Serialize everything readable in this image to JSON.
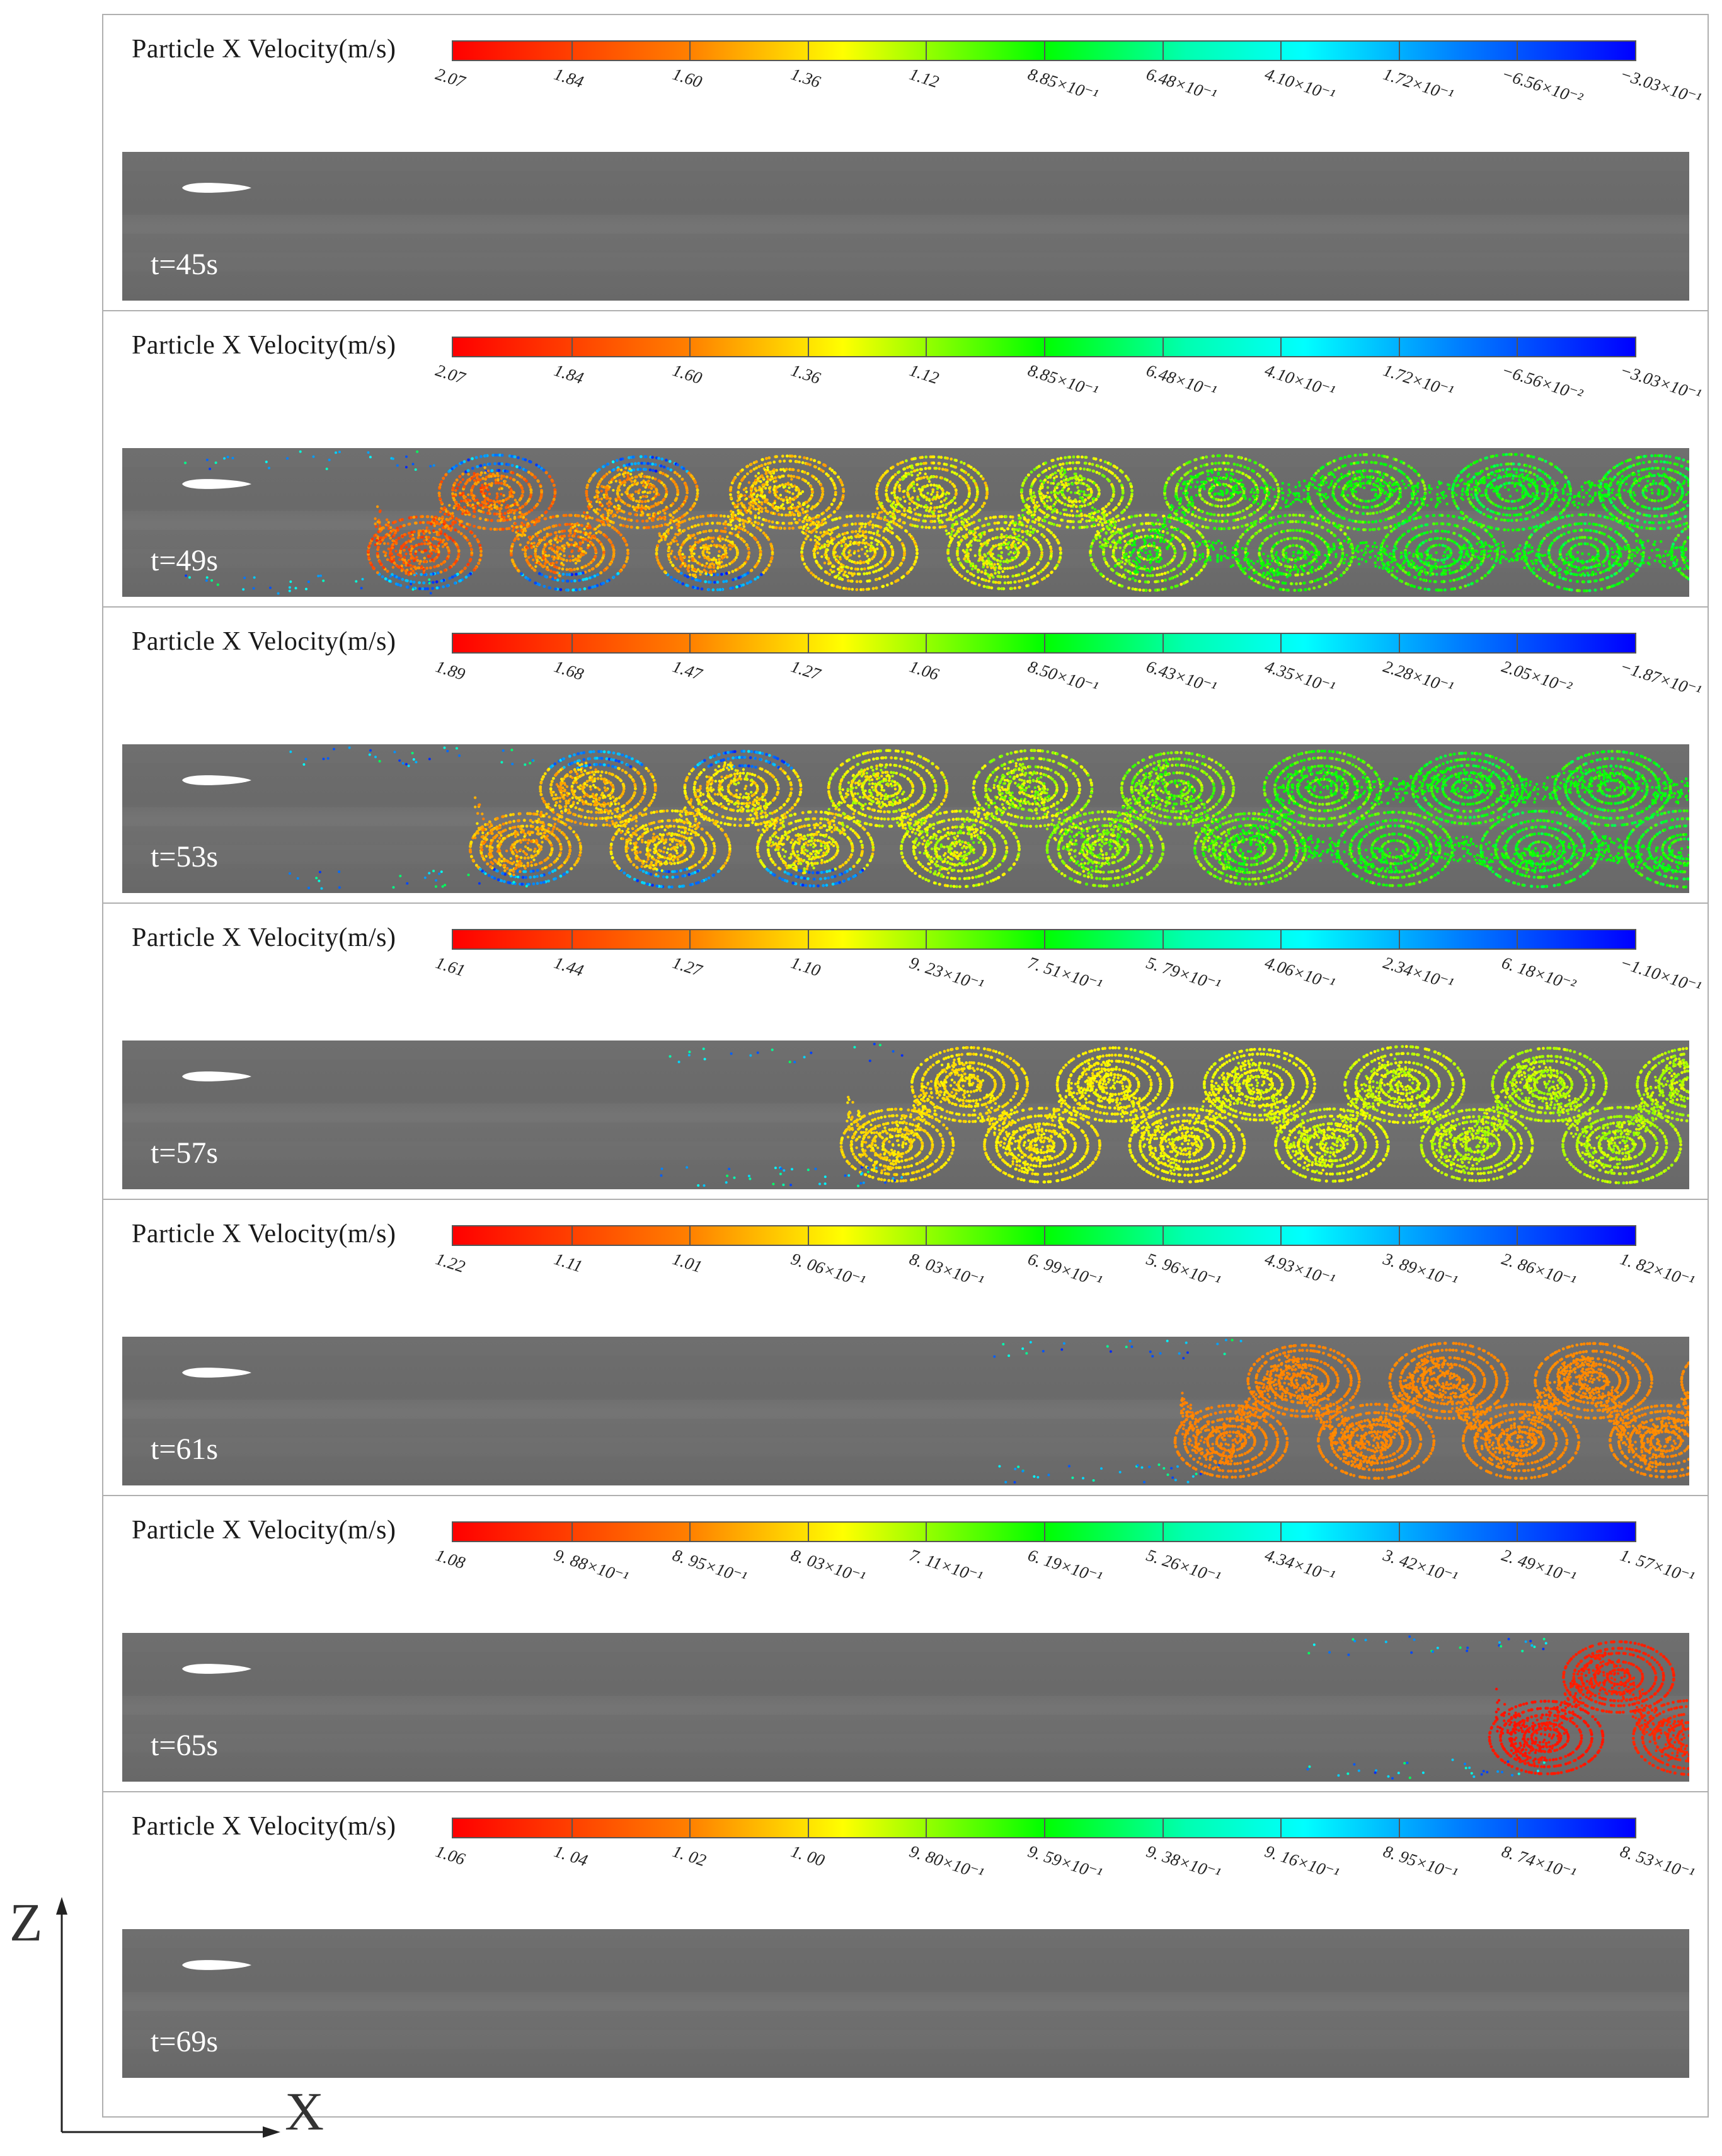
{
  "figure": {
    "panels": [
      {
        "time": "t=45s",
        "colorbar_title": "Particle X Velocity(m/s)",
        "ticks": [
          "2.07",
          "1.84",
          "1.60",
          "1.36",
          "1.12",
          "8.85×10⁻¹",
          "6.48×10⁻¹",
          "4.10×10⁻¹",
          "1.72×10⁻¹",
          "−6.56×10⁻²",
          "−3.03×10⁻¹"
        ],
        "particles": "none"
      },
      {
        "time": "t=49s",
        "colorbar_title": "Particle X Velocity(m/s)",
        "ticks": [
          "2.07",
          "1.84",
          "1.60",
          "1.36",
          "1.12",
          "8.85×10⁻¹",
          "6.48×10⁻¹",
          "4.10×10⁻¹",
          "1.72×10⁻¹",
          "−6.56×10⁻²",
          "−3.03×10⁻¹"
        ],
        "particles": "wake"
      },
      {
        "time": "t=53s",
        "colorbar_title": "Particle X Velocity(m/s)",
        "ticks": [
          "1.89",
          "1.68",
          "1.47",
          "1.27",
          "1.06",
          "8.50×10⁻¹",
          "6.43×10⁻¹",
          "4.35×10⁻¹",
          "2.28×10⁻¹",
          "2.05×10⁻²",
          "−1.87×10⁻¹"
        ],
        "particles": "wake"
      },
      {
        "time": "t=57s",
        "colorbar_title": "Particle X Velocity(m/s)",
        "ticks": [
          "1.61",
          "1.44",
          "1.27",
          "1.10",
          "9. 23×10⁻¹",
          "7. 51×10⁻¹",
          "5. 79×10⁻¹",
          "4.06×10⁻¹",
          "2.34×10⁻¹",
          "6. 18×10⁻²",
          "−1.10×10⁻¹"
        ],
        "particles": "wake"
      },
      {
        "time": "t=61s",
        "colorbar_title": "Particle X Velocity(m/s)",
        "ticks": [
          "1.22",
          "1.11",
          "1.01",
          "9. 06×10⁻¹",
          "8. 03×10⁻¹",
          "6. 99×10⁻¹",
          "5. 96×10⁻¹",
          "4.93×10⁻¹",
          "3. 89×10⁻¹",
          "2. 86×10⁻¹",
          "1. 82×10⁻¹"
        ],
        "particles": "wake"
      },
      {
        "time": "t=65s",
        "colorbar_title": "Particle X Velocity(m/s)",
        "ticks": [
          "1.08",
          "9. 88×10⁻¹",
          "8. 95×10⁻¹",
          "8. 03×10⁻¹",
          "7. 11×10⁻¹",
          "6. 19×10⁻¹",
          "5. 26×10⁻¹",
          "4.34×10⁻¹",
          "3. 42×10⁻¹",
          "2. 49×10⁻¹",
          "1. 57×10⁻¹"
        ],
        "particles": "wake"
      },
      {
        "time": "t=69s",
        "colorbar_title": "Particle X Velocity(m/s)",
        "ticks": [
          "1.06",
          "1. 04",
          "1. 02",
          "1. 00",
          "9. 80×10⁻¹",
          "9. 59×10⁻¹",
          "9. 38×10⁻¹",
          "9. 16×10⁻¹",
          "8. 95×10⁻¹",
          "8. 74×10⁻¹",
          "8. 53×10⁻¹"
        ],
        "particles": "none"
      }
    ],
    "axes": {
      "z_label": "Z",
      "x_label": "X"
    },
    "colors": {
      "background": "#6b6b6b",
      "colormap": [
        "#ff0000",
        "#ff8000",
        "#ffff00",
        "#00ff00",
        "#00ffff",
        "#0080ff",
        "#0000ff"
      ]
    }
  }
}
